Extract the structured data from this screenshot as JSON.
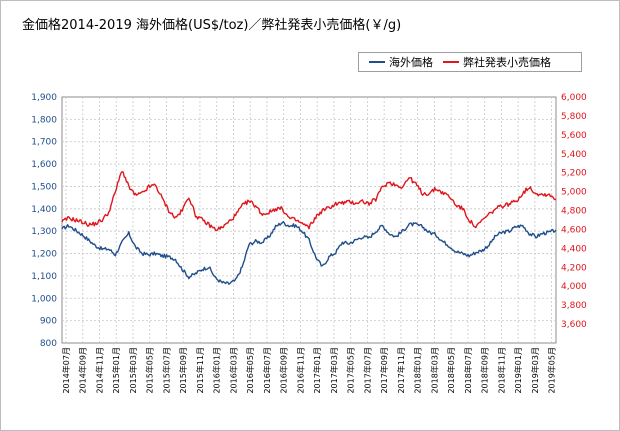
{
  "title": "金価格2014-2019 海外価格(US$/toz)／弊社発表小売価格(￥/g)",
  "colors": {
    "overseas": "#1f4e8c",
    "retail": "#e0161c",
    "grid": "#c8c8c8",
    "axisLeft": "#1f4e8c",
    "axisRight": "#e0161c"
  },
  "chart_data": {
    "type": "line",
    "title": "金価格2014-2019 海外価格(US$/toz)／弊社発表小売価格(￥/g)",
    "legend_position": "top-right",
    "grid": true,
    "y_left": {
      "min": 800,
      "max": 1900,
      "ticks": [
        "800",
        "900",
        "1,000",
        "1,100",
        "1,200",
        "1,300",
        "1,400",
        "1,500",
        "1,600",
        "1,700",
        "1,800",
        "1,900"
      ]
    },
    "y_right": {
      "min": 3400,
      "max": 6000,
      "ticks": [
        "3,600",
        "3,800",
        "4,000",
        "4,200",
        "4,400",
        "4,600",
        "4,800",
        "5,000",
        "5,200",
        "5,400",
        "5,600",
        "5,800",
        "6,000"
      ]
    },
    "x_labels": [
      "2014年07月",
      "2014年09月",
      "2014年11月",
      "2015年01月",
      "2015年03月",
      "2015年05月",
      "2015年07月",
      "2015年09月",
      "2015年11月",
      "2016年01月",
      "2016年03月",
      "2016年05月",
      "2016年07月",
      "2016年09月",
      "2016年11月",
      "2017年01月",
      "2017年03月",
      "2017年05月",
      "2017年07月",
      "2017年09月",
      "2017年11月",
      "2018年01月",
      "2018年03月",
      "2018年05月",
      "2018年07月",
      "2018年09月",
      "2018年11月",
      "2019年01月",
      "2019年03月",
      "2019年05月"
    ],
    "months": 60,
    "series": [
      {
        "name": "海外価格",
        "axis": "left",
        "values": [
          1310,
          1325,
          1305,
          1285,
          1260,
          1235,
          1220,
          1220,
          1195,
          1250,
          1290,
          1230,
          1200,
          1195,
          1200,
          1190,
          1185,
          1175,
          1130,
          1095,
          1110,
          1130,
          1140,
          1090,
          1070,
          1065,
          1080,
          1140,
          1240,
          1255,
          1250,
          1275,
          1320,
          1340,
          1325,
          1325,
          1300,
          1260,
          1185,
          1140,
          1185,
          1205,
          1250,
          1245,
          1260,
          1275,
          1270,
          1300,
          1325,
          1290,
          1275,
          1300,
          1330,
          1330,
          1320,
          1295,
          1285,
          1255,
          1235,
          1210,
          1200,
          1190,
          1205,
          1215,
          1240,
          1280,
          1295,
          1300,
          1320,
          1325,
          1290,
          1275,
          1290,
          1295,
          1305
        ]
      },
      {
        "name": "弊社発表小売価格",
        "axis": "right",
        "values": [
          4680,
          4720,
          4700,
          4680,
          4650,
          4660,
          4700,
          4780,
          5000,
          5230,
          5050,
          4960,
          4980,
          5050,
          5070,
          4930,
          4800,
          4720,
          4800,
          4950,
          4750,
          4700,
          4650,
          4600,
          4620,
          4680,
          4750,
          4850,
          4900,
          4850,
          4760,
          4780,
          4820,
          4820,
          4720,
          4700,
          4660,
          4620,
          4730,
          4800,
          4830,
          4870,
          4880,
          4890,
          4880,
          4900,
          4870,
          4920,
          5050,
          5100,
          5070,
          5050,
          5150,
          5080,
          4980,
          4980,
          5030,
          4990,
          4950,
          4860,
          4820,
          4700,
          4620,
          4700,
          4760,
          4820,
          4850,
          4870,
          4900,
          4980,
          5050,
          4980,
          4970,
          4970,
          4920
        ]
      }
    ]
  },
  "legend": {
    "items": [
      {
        "label": "海外価格"
      },
      {
        "label": "弊社発表小売価格"
      }
    ]
  }
}
